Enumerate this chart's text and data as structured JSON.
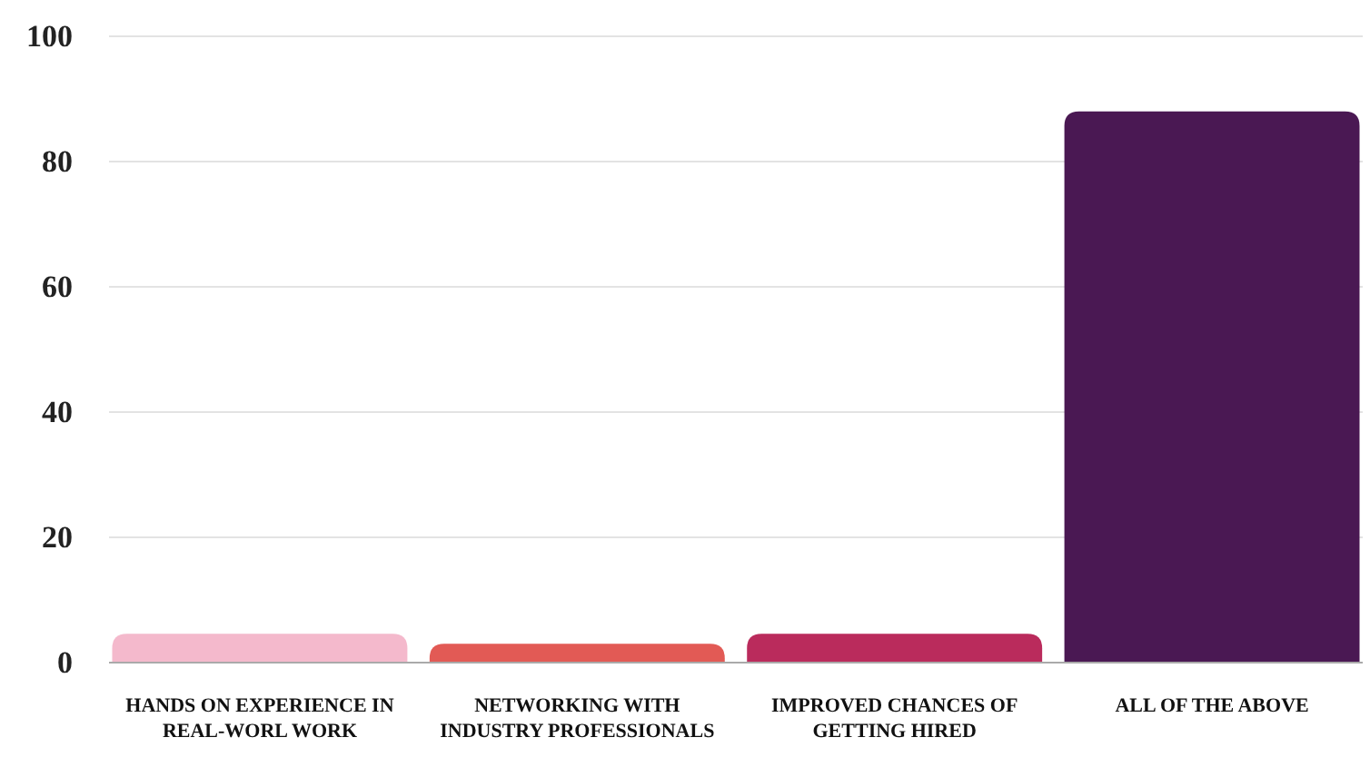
{
  "chart_data": {
    "type": "bar",
    "categories": [
      "HANDS ON EXPERIENCE IN REAL-WORL WORK",
      "NETWORKING WITH INDUSTRY PROFESSIONALS",
      "IMPROVED CHANCES OF GETTING HIRED",
      "ALL OF THE ABOVE"
    ],
    "values": [
      4.6,
      3,
      4.6,
      88
    ],
    "colors": [
      "#f4b9cc",
      "#e25a55",
      "#ba2b5c",
      "#4a1853"
    ],
    "ylim": [
      0,
      100
    ],
    "yticks": [
      0,
      20,
      40,
      60,
      80,
      100
    ],
    "grid": "y"
  }
}
